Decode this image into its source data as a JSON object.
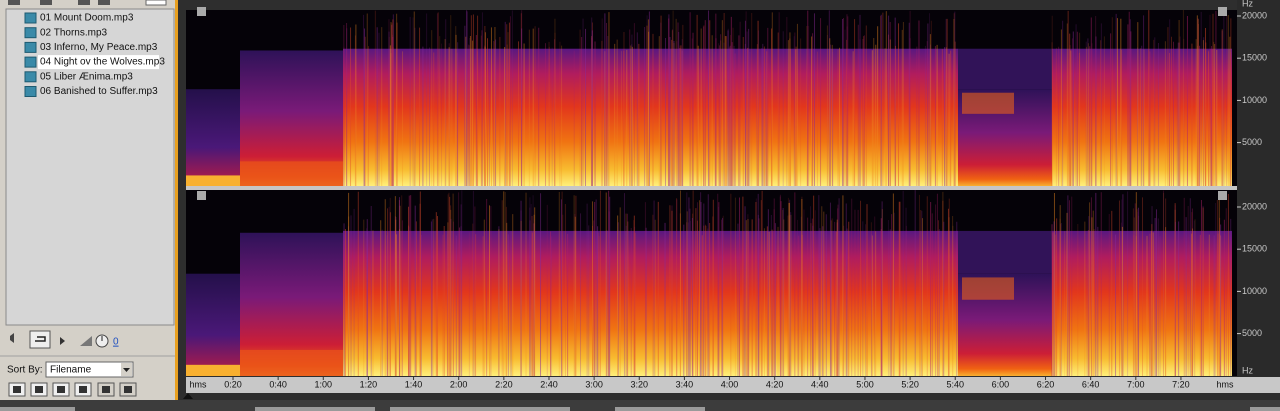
{
  "file_list": {
    "items": [
      "01 Mount Doom.mp3",
      "02 Thorns.mp3",
      "03 Inferno, My Peace.mp3",
      "04 Night ov the Wolves.mp3",
      "05 Liber Ænima.mp3",
      "06 Banished to Suffer.mp3"
    ]
  },
  "transport": {
    "volume": "0"
  },
  "sort": {
    "label": "Sort By:",
    "value": "Filename"
  },
  "frequency_axis": {
    "unit": "Hz",
    "top_channel": [
      "20000",
      "15000",
      "10000",
      "5000"
    ],
    "bottom_channel": [
      "20000",
      "15000",
      "10000",
      "5000"
    ]
  },
  "time_axis": {
    "unit": "hms",
    "labels": [
      "0:20",
      "0:40",
      "1:00",
      "1:20",
      "1:40",
      "2:00",
      "2:20",
      "2:40",
      "3:00",
      "3:20",
      "3:40",
      "4:00",
      "4:20",
      "4:40",
      "5:00",
      "5:20",
      "5:40",
      "6:00",
      "6:20",
      "6:40",
      "7:00",
      "7:20"
    ]
  }
}
